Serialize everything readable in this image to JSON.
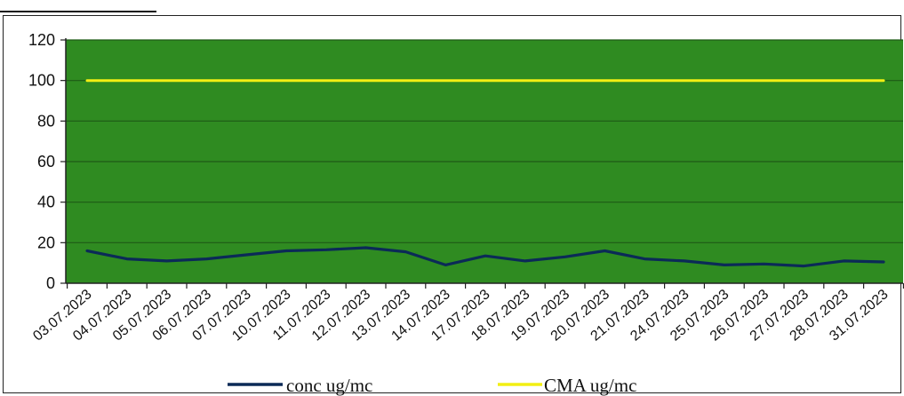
{
  "chart_data": {
    "type": "line",
    "title": "",
    "xlabel": "",
    "ylabel": "",
    "ylim": [
      0,
      120
    ],
    "yticks": [
      0,
      20,
      40,
      60,
      80,
      100,
      120
    ],
    "grid": true,
    "legend_position": "bottom",
    "categories": [
      "03.07.2023",
      "04.07.2023",
      "05.07.2023",
      "06.07.2023",
      "07.07.2023",
      "10.07.2023",
      "11.07.2023",
      "12.07.2023",
      "13.07.2023",
      "14.07.2023",
      "17.07.2023",
      "18.07.2023",
      "19.07.2023",
      "20.07.2023",
      "21.07.2023",
      "24.07.2023",
      "25.07.2023",
      "26.07.2023",
      "27.07.2023",
      "28.07.2023",
      "31.07.2023"
    ],
    "series": [
      {
        "name": "conc ug/mc",
        "color": "#0b2a57",
        "values": [
          16,
          12,
          11,
          12,
          14,
          16,
          16.5,
          17.5,
          15.5,
          9,
          13.5,
          11,
          13,
          16,
          12,
          11,
          9,
          9.5,
          8.5,
          11,
          10.5
        ]
      },
      {
        "name": "CMA ug/mc",
        "color": "#f2ef13",
        "values": [
          100,
          100,
          100,
          100,
          100,
          100,
          100,
          100,
          100,
          100,
          100,
          100,
          100,
          100,
          100,
          100,
          100,
          100,
          100,
          100,
          100
        ]
      }
    ],
    "colors": {
      "plot_background": "#2f8b21",
      "gridline": "#1e5a16",
      "axis": "#222222"
    }
  }
}
